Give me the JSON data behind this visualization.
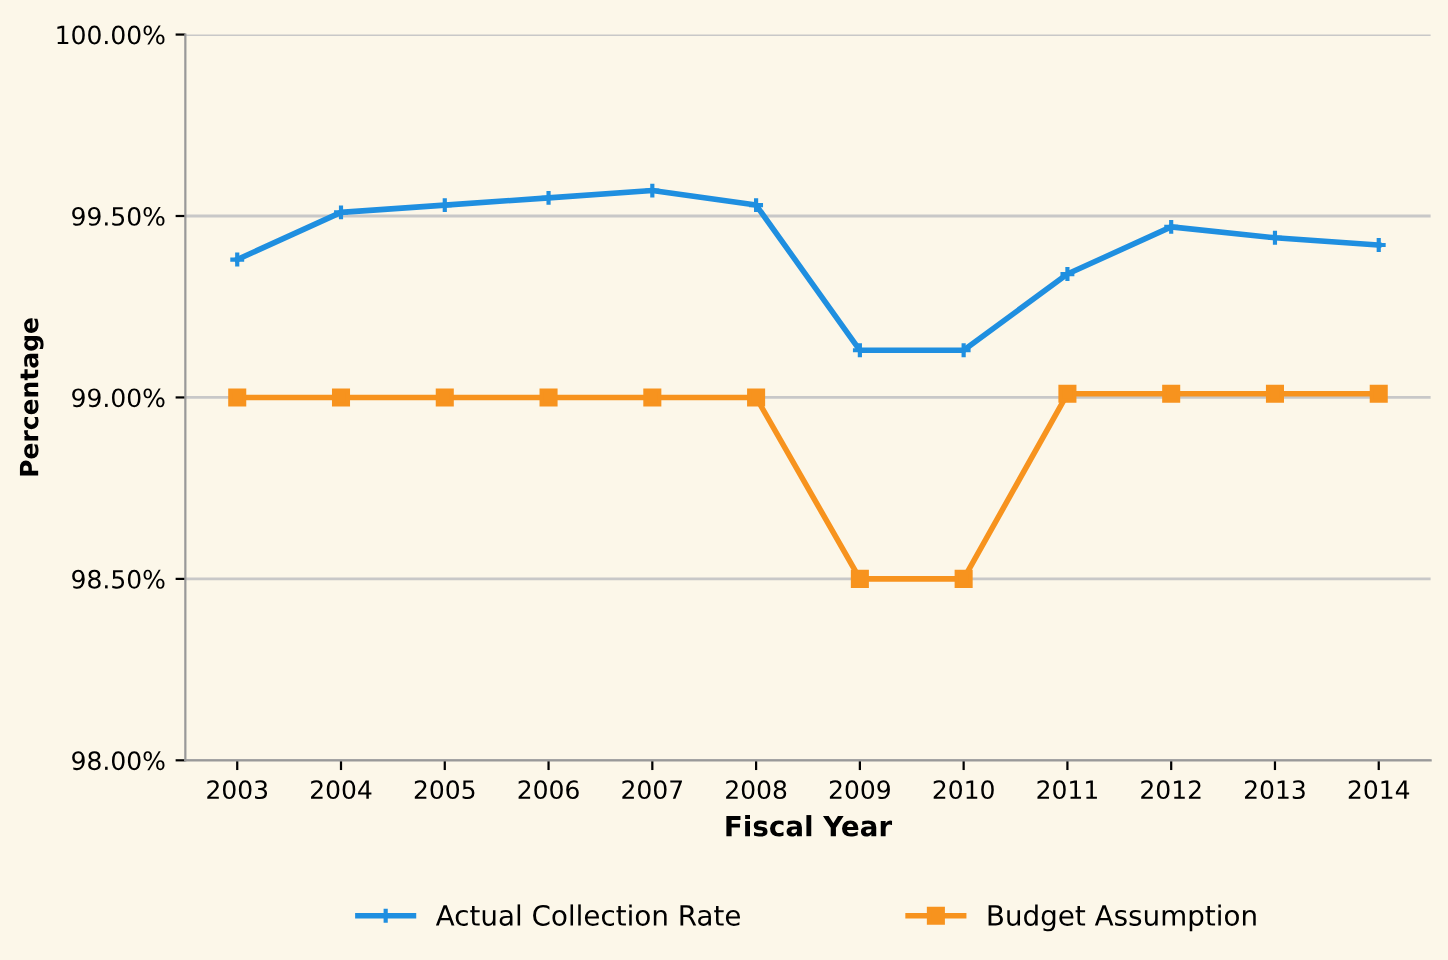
{
  "chart_data": {
    "type": "line",
    "xlabel": "Fiscal Year",
    "ylabel": "Percentage",
    "categories": [
      "2003",
      "2004",
      "2005",
      "2006",
      "2007",
      "2008",
      "2009",
      "2010",
      "2011",
      "2012",
      "2013",
      "2014"
    ],
    "series": [
      {
        "name": "Actual Collection Rate",
        "color": "#1f8fe0",
        "marker": "cross",
        "values": [
          99.38,
          99.51,
          99.53,
          99.55,
          99.57,
          99.53,
          99.13,
          99.13,
          99.34,
          99.47,
          99.44,
          99.42
        ]
      },
      {
        "name": "Budget Assumption",
        "color": "#f7931e",
        "marker": "square",
        "values": [
          99.0,
          99.0,
          99.0,
          99.0,
          99.0,
          99.0,
          98.5,
          98.5,
          99.01,
          99.01,
          99.01,
          99.01
        ]
      }
    ],
    "ylim": [
      98.0,
      100.0
    ],
    "yticks": [
      {
        "value": 98.0,
        "label": "98.00%"
      },
      {
        "value": 98.5,
        "label": "98.50%"
      },
      {
        "value": 99.0,
        "label": "99.00%"
      },
      {
        "value": 99.5,
        "label": "99.50%"
      },
      {
        "value": 100.0,
        "label": "100.00%"
      }
    ],
    "grid": "y",
    "legend": "bottom",
    "line_style": "solid"
  }
}
